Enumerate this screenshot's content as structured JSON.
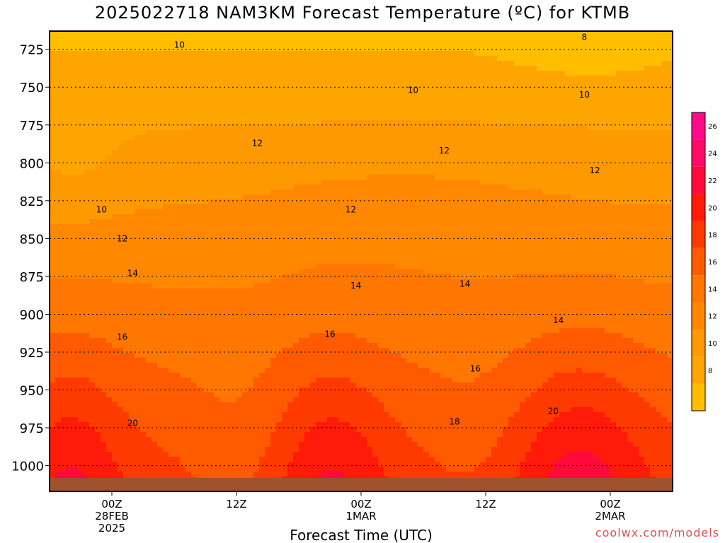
{
  "title": "2025022718 NAM3KM Forecast Temperature (ºC) for KTMB",
  "credit": "coolwx.com/models",
  "chart_data": {
    "type": "heatmap",
    "title": "2025022718 NAM3KM Forecast Temperature (ºC) for KTMB",
    "xlabel": "Forecast Time (UTC)",
    "ylabel": "",
    "x_ticks": [
      {
        "hour": 6,
        "lines": [
          "00Z",
          "28FEB",
          "2025"
        ]
      },
      {
        "hour": 18,
        "lines": [
          "12Z"
        ]
      },
      {
        "hour": 30,
        "lines": [
          "00Z",
          "1MAR"
        ]
      },
      {
        "hour": 42,
        "lines": [
          "12Z"
        ]
      },
      {
        "hour": 54,
        "lines": [
          "00Z",
          "2MAR"
        ]
      }
    ],
    "xlim_hours": [
      0,
      60
    ],
    "y_ticks": [
      725,
      750,
      775,
      800,
      825,
      850,
      875,
      900,
      925,
      950,
      975,
      1000
    ],
    "ylim_hpa": [
      713,
      1017
    ],
    "grid": "dotted horizontal at pressure ticks",
    "levels": [
      6,
      8,
      10,
      12,
      14,
      16,
      18,
      20,
      22,
      24,
      26,
      28
    ],
    "colors": [
      "#ffbf00",
      "#ffa500",
      "#ff9900",
      "#ff8800",
      "#ff7700",
      "#ff5a00",
      "#ff3a00",
      "#ff1a0a",
      "#ff0a3a",
      "#ff0a66",
      "#ff0a8a"
    ],
    "colorbar_ticks": [
      8,
      10,
      12,
      14,
      16,
      18,
      20,
      22,
      24,
      26
    ],
    "contour_labels": [
      {
        "x": 12.5,
        "p": 722,
        "text": "10"
      },
      {
        "x": 51.5,
        "p": 717,
        "text": "8"
      },
      {
        "x": 35,
        "p": 752,
        "text": "10"
      },
      {
        "x": 51.5,
        "p": 755,
        "text": "10"
      },
      {
        "x": 20,
        "p": 787,
        "text": "12"
      },
      {
        "x": 38,
        "p": 792,
        "text": "12"
      },
      {
        "x": 52.5,
        "p": 805,
        "text": "12"
      },
      {
        "x": 5,
        "p": 831,
        "text": "10"
      },
      {
        "x": 29,
        "p": 831,
        "text": "12"
      },
      {
        "x": 7,
        "p": 850,
        "text": "12"
      },
      {
        "x": 40,
        "p": 880,
        "text": "14"
      },
      {
        "x": 8,
        "p": 873,
        "text": "14"
      },
      {
        "x": 29.5,
        "p": 881,
        "text": "14"
      },
      {
        "x": 49,
        "p": 904,
        "text": "14"
      },
      {
        "x": 7,
        "p": 915,
        "text": "16"
      },
      {
        "x": 27,
        "p": 913,
        "text": "16"
      },
      {
        "x": 41,
        "p": 936,
        "text": "16"
      },
      {
        "x": 8,
        "p": 972,
        "text": "20"
      },
      {
        "x": 39,
        "p": 971,
        "text": "18"
      },
      {
        "x": 48.5,
        "p": 964,
        "text": "20"
      }
    ]
  }
}
